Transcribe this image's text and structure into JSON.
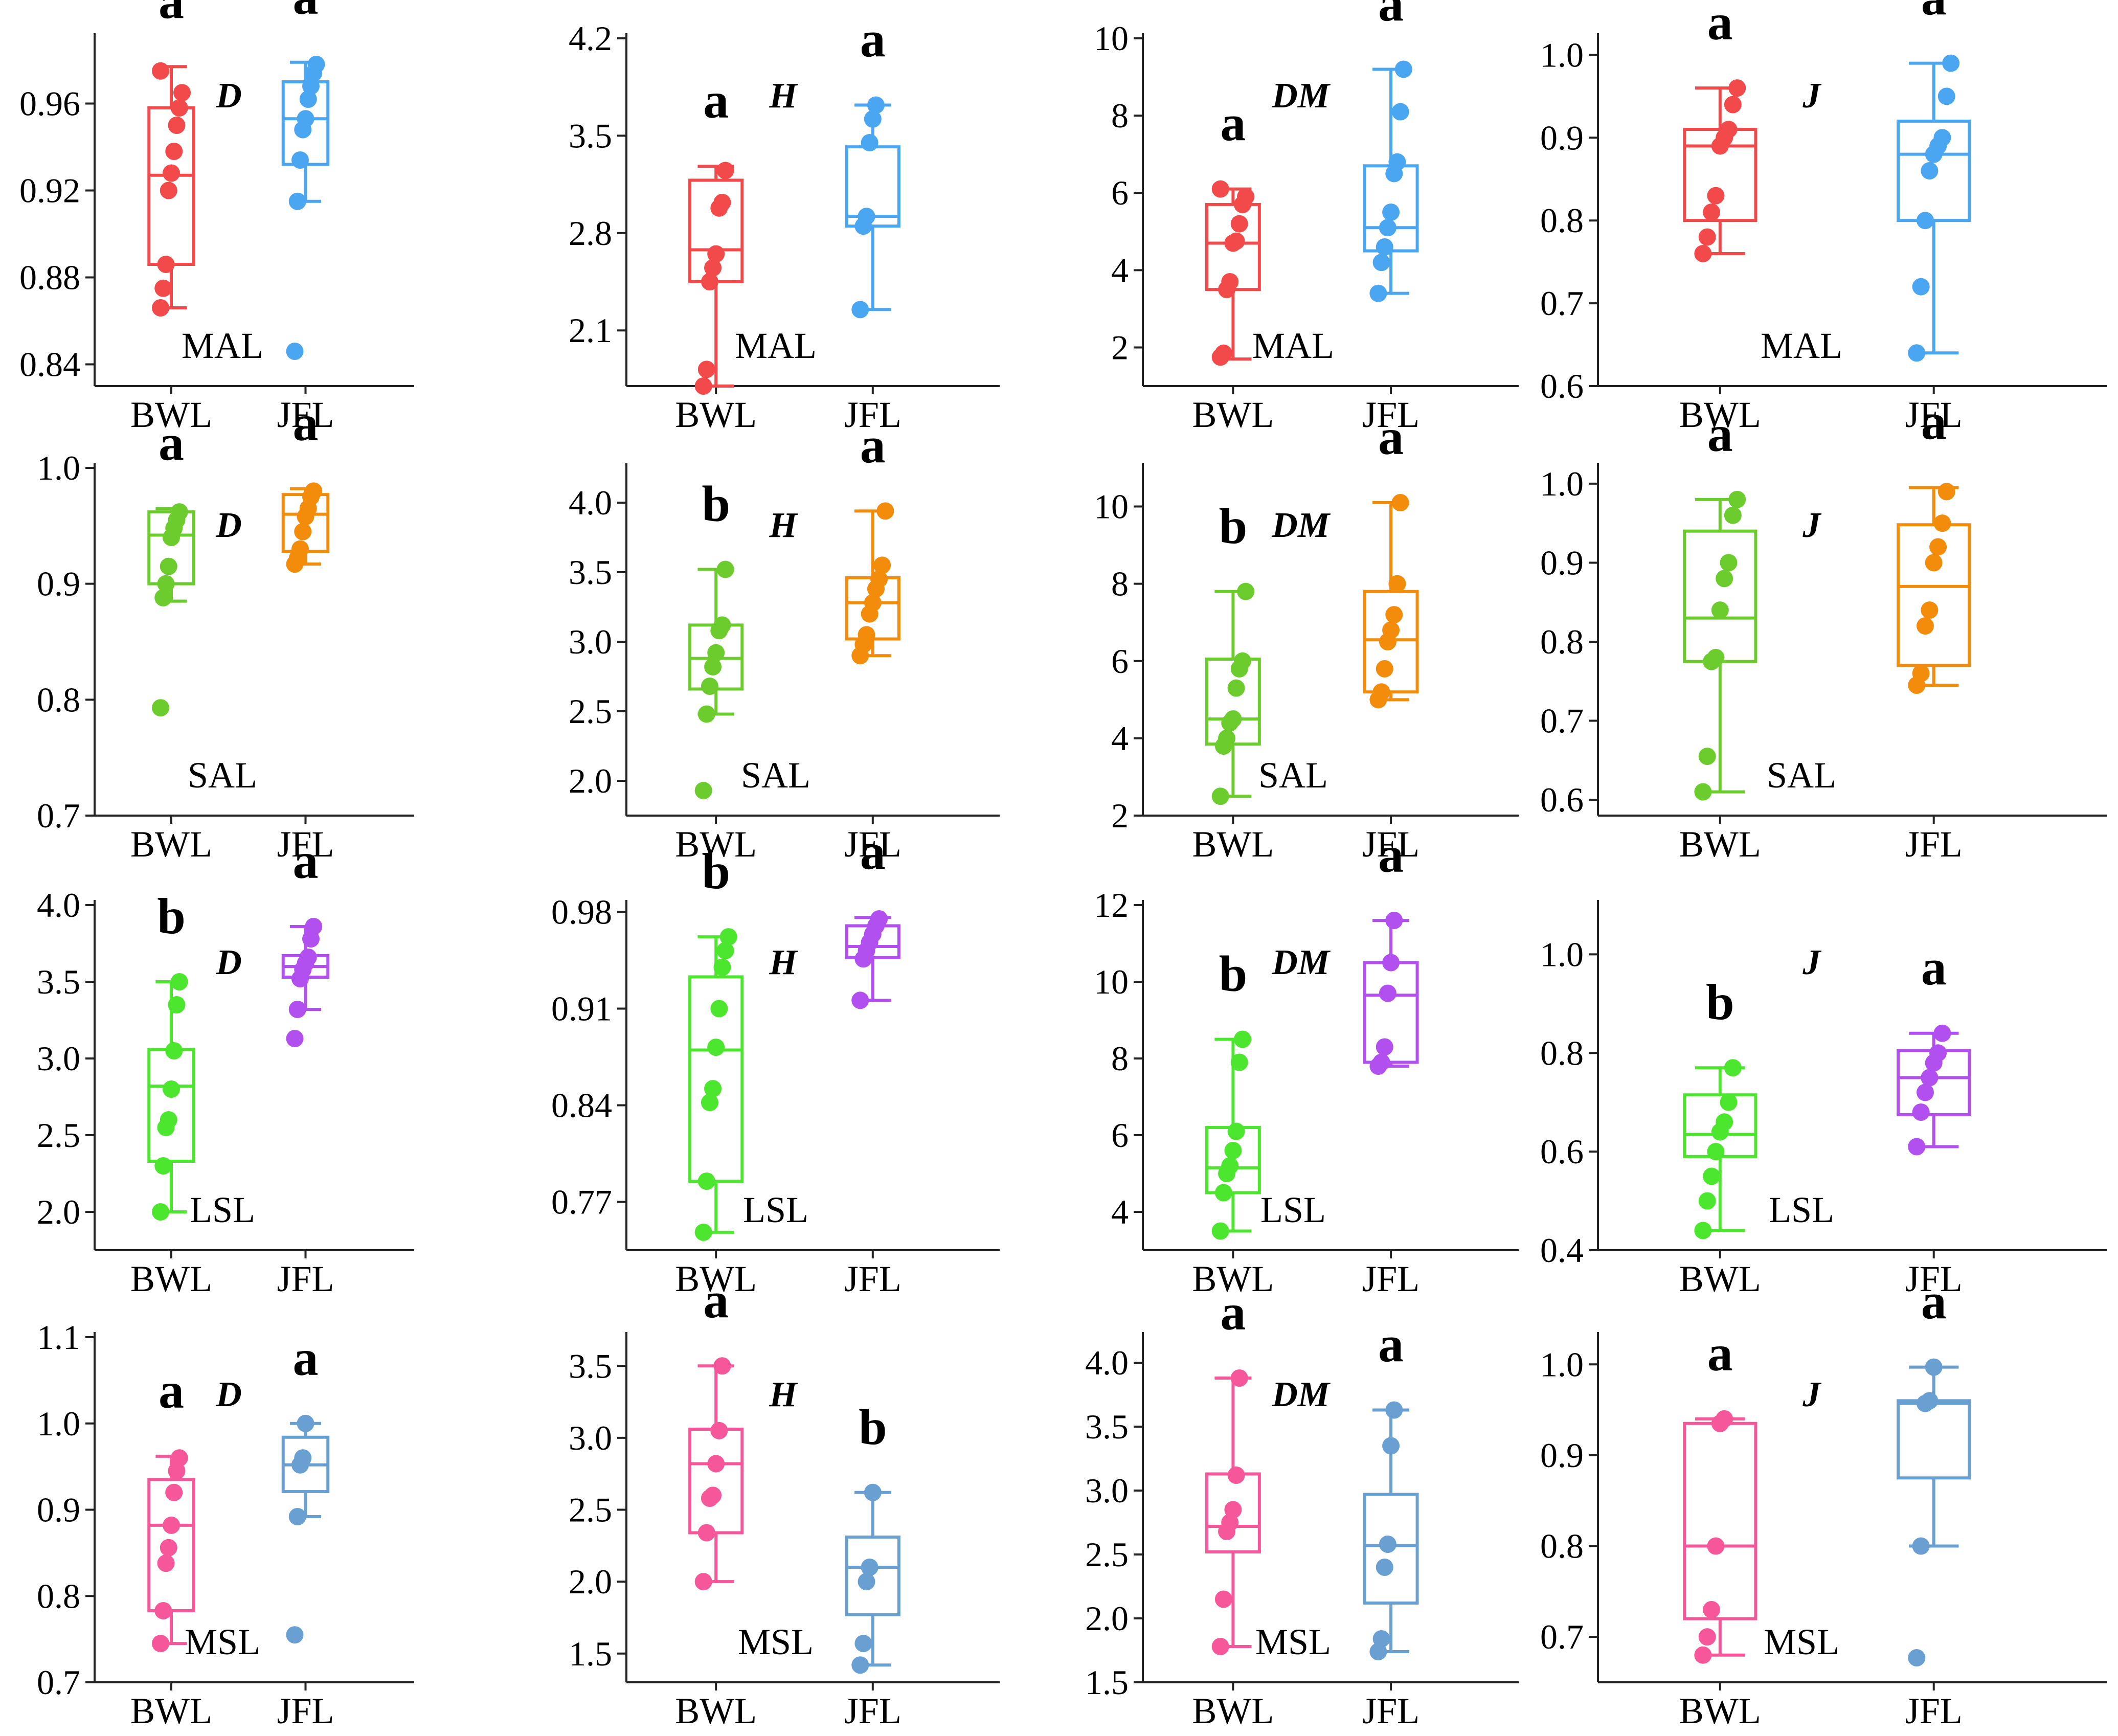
{
  "figure": {
    "columns": 4,
    "rows": 4,
    "group_labels": [
      "BWL",
      "JFL"
    ]
  },
  "chart_data": [
    {
      "type": "box",
      "row": 0,
      "col": 0,
      "site": "MAL",
      "index": "D",
      "categories": [
        "BWL",
        "JFL"
      ],
      "ylim": [
        0.83,
        0.99
      ],
      "yticks": [
        "0.84",
        "0.88",
        "0.92",
        "0.96"
      ],
      "series": [
        {
          "name": "BWL",
          "color": "#f24a4a",
          "min": 0.866,
          "q1": 0.886,
          "median": 0.927,
          "q3": 0.958,
          "max": 0.977,
          "points": [
            0.866,
            0.875,
            0.886,
            0.92,
            0.928,
            0.938,
            0.95,
            0.958,
            0.965,
            0.975
          ],
          "letter": "a"
        },
        {
          "name": "JFL",
          "color": "#4aa6f0",
          "min": 0.915,
          "q1": 0.932,
          "median": 0.953,
          "q3": 0.97,
          "max": 0.979,
          "points": [
            0.846,
            0.915,
            0.934,
            0.948,
            0.953,
            0.962,
            0.968,
            0.974,
            0.978
          ],
          "letter": "a"
        }
      ]
    },
    {
      "type": "box",
      "row": 0,
      "col": 1,
      "site": "MAL",
      "index": "H",
      "categories": [
        "BWL",
        "JFL"
      ],
      "ylim": [
        1.7,
        4.2
      ],
      "yticks": [
        "2.1",
        "2.8",
        "3.5",
        "4.2"
      ],
      "series": [
        {
          "name": "BWL",
          "color": "#f24a4a",
          "min": 1.7,
          "q1": 2.45,
          "median": 2.68,
          "q3": 3.18,
          "max": 3.28,
          "points": [
            1.7,
            1.82,
            2.45,
            2.55,
            2.65,
            2.98,
            3.02,
            3.25
          ],
          "letter": "a"
        },
        {
          "name": "JFL",
          "color": "#4aa6f0",
          "min": 2.25,
          "q1": 2.85,
          "median": 2.92,
          "q3": 3.42,
          "max": 3.72,
          "points": [
            2.25,
            2.85,
            2.92,
            3.45,
            3.62,
            3.72
          ],
          "letter": "a"
        }
      ]
    },
    {
      "type": "box",
      "row": 0,
      "col": 2,
      "site": "MAL",
      "index": "DM",
      "categories": [
        "BWL",
        "JFL"
      ],
      "ylim": [
        1,
        10
      ],
      "yticks": [
        "2",
        "4",
        "6",
        "8",
        "10"
      ],
      "series": [
        {
          "name": "BWL",
          "color": "#f24a4a",
          "min": 1.7,
          "q1": 3.5,
          "median": 4.7,
          "q3": 5.7,
          "max": 6.1,
          "points": [
            1.75,
            1.85,
            3.5,
            3.7,
            4.7,
            4.75,
            5.2,
            5.7,
            5.9,
            6.1
          ],
          "letter": "a"
        },
        {
          "name": "JFL",
          "color": "#4aa6f0",
          "min": 3.4,
          "q1": 4.5,
          "median": 5.1,
          "q3": 6.7,
          "max": 9.2,
          "points": [
            3.4,
            4.2,
            4.6,
            5.1,
            5.5,
            6.5,
            6.8,
            8.1,
            9.2
          ],
          "letter": "a"
        }
      ]
    },
    {
      "type": "box",
      "row": 0,
      "col": 3,
      "site": "MAL",
      "index": "J",
      "categories": [
        "BWL",
        "JFL"
      ],
      "ylim": [
        0.6,
        1.02
      ],
      "yticks": [
        "0.6",
        "0.7",
        "0.8",
        "0.9",
        "1.0"
      ],
      "series": [
        {
          "name": "BWL",
          "color": "#f24a4a",
          "min": 0.76,
          "q1": 0.8,
          "median": 0.89,
          "q3": 0.91,
          "max": 0.96,
          "points": [
            0.76,
            0.78,
            0.81,
            0.83,
            0.89,
            0.9,
            0.91,
            0.94,
            0.96
          ],
          "letter": "a"
        },
        {
          "name": "JFL",
          "color": "#4aa6f0",
          "min": 0.64,
          "q1": 0.8,
          "median": 0.88,
          "q3": 0.92,
          "max": 0.99,
          "points": [
            0.64,
            0.72,
            0.8,
            0.86,
            0.88,
            0.89,
            0.9,
            0.95,
            0.99
          ],
          "letter": "a"
        }
      ]
    },
    {
      "type": "box",
      "row": 1,
      "col": 0,
      "site": "SAL",
      "index": "D",
      "categories": [
        "BWL",
        "JFL"
      ],
      "ylim": [
        0.7,
        1.0
      ],
      "yticks": [
        "0.7",
        "0.8",
        "0.9",
        "1.0"
      ],
      "series": [
        {
          "name": "BWL",
          "color": "#6ccc2e",
          "min": 0.885,
          "q1": 0.9,
          "median": 0.942,
          "q3": 0.962,
          "max": 0.965,
          "points": [
            0.793,
            0.888,
            0.9,
            0.915,
            0.94,
            0.948,
            0.955,
            0.962
          ],
          "letter": "a"
        },
        {
          "name": "JFL",
          "color": "#f28c0a",
          "min": 0.917,
          "q1": 0.928,
          "median": 0.96,
          "q3": 0.977,
          "max": 0.982,
          "points": [
            0.917,
            0.922,
            0.93,
            0.945,
            0.958,
            0.965,
            0.975,
            0.98
          ],
          "letter": "a"
        }
      ]
    },
    {
      "type": "box",
      "row": 1,
      "col": 1,
      "site": "SAL",
      "index": "H",
      "categories": [
        "BWL",
        "JFL"
      ],
      "ylim": [
        1.75,
        4.25
      ],
      "yticks": [
        "2.0",
        "2.5",
        "3.0",
        "3.5",
        "4.0"
      ],
      "series": [
        {
          "name": "BWL",
          "color": "#6ccc2e",
          "min": 2.48,
          "q1": 2.66,
          "median": 2.88,
          "q3": 3.12,
          "max": 3.52,
          "points": [
            1.93,
            2.48,
            2.68,
            2.82,
            2.92,
            3.08,
            3.12,
            3.52
          ],
          "letter": "b"
        },
        {
          "name": "JFL",
          "color": "#f28c0a",
          "min": 2.9,
          "q1": 3.02,
          "median": 3.28,
          "q3": 3.46,
          "max": 3.94,
          "points": [
            2.9,
            2.98,
            3.05,
            3.2,
            3.28,
            3.38,
            3.45,
            3.55,
            3.94
          ],
          "letter": "a"
        }
      ]
    },
    {
      "type": "box",
      "row": 1,
      "col": 2,
      "site": "SAL",
      "index": "DM",
      "categories": [
        "BWL",
        "JFL"
      ],
      "ylim": [
        2,
        11
      ],
      "yticks": [
        "2",
        "4",
        "6",
        "8",
        "10"
      ],
      "series": [
        {
          "name": "BWL",
          "color": "#6ccc2e",
          "min": 2.5,
          "q1": 3.85,
          "median": 4.5,
          "q3": 6.05,
          "max": 7.8,
          "points": [
            2.5,
            3.8,
            4.0,
            4.4,
            4.5,
            5.3,
            5.8,
            6.0,
            7.8
          ],
          "letter": "b"
        },
        {
          "name": "JFL",
          "color": "#f28c0a",
          "min": 5.0,
          "q1": 5.2,
          "median": 6.55,
          "q3": 7.8,
          "max": 10.1,
          "points": [
            5.0,
            5.2,
            5.8,
            6.5,
            6.8,
            7.2,
            8.0,
            10.1
          ],
          "letter": "a"
        }
      ]
    },
    {
      "type": "box",
      "row": 1,
      "col": 3,
      "site": "SAL",
      "index": "J",
      "categories": [
        "BWL",
        "JFL"
      ],
      "ylim": [
        0.58,
        1.02
      ],
      "yticks": [
        "0.6",
        "0.7",
        "0.8",
        "0.9",
        "1.0"
      ],
      "series": [
        {
          "name": "BWL",
          "color": "#6ccc2e",
          "min": 0.61,
          "q1": 0.775,
          "median": 0.83,
          "q3": 0.94,
          "max": 0.98,
          "points": [
            0.61,
            0.655,
            0.775,
            0.78,
            0.84,
            0.88,
            0.9,
            0.96,
            0.98
          ],
          "letter": "a"
        },
        {
          "name": "JFL",
          "color": "#f28c0a",
          "min": 0.745,
          "q1": 0.77,
          "median": 0.87,
          "q3": 0.948,
          "max": 0.995,
          "points": [
            0.745,
            0.76,
            0.82,
            0.84,
            0.9,
            0.92,
            0.95,
            0.99
          ],
          "letter": "a"
        }
      ]
    },
    {
      "type": "box",
      "row": 2,
      "col": 0,
      "site": "LSL",
      "index": "D",
      "categories": [
        "BWL",
        "JFL"
      ],
      "ylim": [
        1.75,
        4.0
      ],
      "yticks": [
        "2.0",
        "2.5",
        "3.0",
        "3.5",
        "4.0"
      ],
      "series": [
        {
          "name": "BWL",
          "color": "#4de62e",
          "min": 2.0,
          "q1": 2.33,
          "median": 2.82,
          "q3": 3.06,
          "max": 3.5,
          "points": [
            2.0,
            2.3,
            2.55,
            2.6,
            2.8,
            3.05,
            3.35,
            3.5
          ],
          "letter": "b"
        },
        {
          "name": "JFL",
          "color": "#b14fef",
          "min": 3.32,
          "q1": 3.53,
          "median": 3.6,
          "q3": 3.67,
          "max": 3.86,
          "points": [
            3.13,
            3.32,
            3.52,
            3.58,
            3.62,
            3.66,
            3.78,
            3.86
          ],
          "letter": "a"
        }
      ]
    },
    {
      "type": "box",
      "row": 2,
      "col": 1,
      "site": "LSL",
      "index": "H",
      "categories": [
        "BWL",
        "JFL"
      ],
      "ylim": [
        0.735,
        0.985
      ],
      "yticks": [
        "0.77",
        "0.84",
        "0.91",
        "0.98"
      ],
      "series": [
        {
          "name": "BWL",
          "color": "#4de62e",
          "min": 0.748,
          "q1": 0.785,
          "median": 0.88,
          "q3": 0.933,
          "max": 0.962,
          "points": [
            0.748,
            0.785,
            0.842,
            0.852,
            0.882,
            0.91,
            0.94,
            0.952,
            0.962
          ],
          "letter": "b"
        },
        {
          "name": "JFL",
          "color": "#b14fef",
          "min": 0.916,
          "q1": 0.947,
          "median": 0.955,
          "q3": 0.97,
          "max": 0.976,
          "points": [
            0.916,
            0.946,
            0.952,
            0.958,
            0.964,
            0.97,
            0.975
          ],
          "letter": "a"
        }
      ]
    },
    {
      "type": "box",
      "row": 2,
      "col": 2,
      "site": "LSL",
      "index": "DM",
      "categories": [
        "BWL",
        "JFL"
      ],
      "ylim": [
        3,
        12
      ],
      "yticks": [
        "4",
        "6",
        "8",
        "10",
        "12"
      ],
      "series": [
        {
          "name": "BWL",
          "color": "#4de62e",
          "min": 3.5,
          "q1": 4.5,
          "median": 5.15,
          "q3": 6.2,
          "max": 8.5,
          "points": [
            3.5,
            4.5,
            5.0,
            5.2,
            5.6,
            6.1,
            7.9,
            8.5
          ],
          "letter": "b"
        },
        {
          "name": "JFL",
          "color": "#b14fef",
          "min": 7.8,
          "q1": 7.9,
          "median": 9.65,
          "q3": 10.5,
          "max": 11.6,
          "points": [
            7.8,
            7.9,
            8.3,
            9.7,
            10.5,
            11.6
          ],
          "letter": "a"
        }
      ]
    },
    {
      "type": "box",
      "row": 2,
      "col": 3,
      "site": "LSL",
      "index": "J",
      "categories": [
        "BWL",
        "JFL"
      ],
      "ylim": [
        0.4,
        1.1
      ],
      "yticks": [
        "0.4",
        "0.6",
        "0.8",
        "1.0"
      ],
      "series": [
        {
          "name": "BWL",
          "color": "#4de62e",
          "min": 0.44,
          "q1": 0.59,
          "median": 0.635,
          "q3": 0.715,
          "max": 0.77,
          "points": [
            0.44,
            0.5,
            0.55,
            0.6,
            0.64,
            0.66,
            0.7,
            0.77
          ],
          "letter": "b"
        },
        {
          "name": "JFL",
          "color": "#b14fef",
          "min": 0.61,
          "q1": 0.675,
          "median": 0.75,
          "q3": 0.805,
          "max": 0.84,
          "points": [
            0.61,
            0.68,
            0.72,
            0.75,
            0.78,
            0.8,
            0.84
          ],
          "letter": "a"
        }
      ]
    },
    {
      "type": "box",
      "row": 3,
      "col": 0,
      "site": "MSL",
      "index": "D",
      "categories": [
        "BWL",
        "JFL"
      ],
      "ylim": [
        0.7,
        1.1
      ],
      "yticks": [
        "0.7",
        "0.8",
        "0.9",
        "1.0",
        "1.1"
      ],
      "series": [
        {
          "name": "BWL",
          "color": "#f5579a",
          "min": 0.745,
          "q1": 0.783,
          "median": 0.882,
          "q3": 0.935,
          "max": 0.962,
          "points": [
            0.745,
            0.783,
            0.838,
            0.856,
            0.882,
            0.92,
            0.945,
            0.96
          ],
          "letter": "a"
        },
        {
          "name": "JFL",
          "color": "#6a9fd2",
          "min": 0.892,
          "q1": 0.921,
          "median": 0.952,
          "q3": 0.984,
          "max": 1.0,
          "points": [
            0.755,
            0.892,
            0.952,
            0.96,
            1.0
          ],
          "letter": "a"
        }
      ]
    },
    {
      "type": "box",
      "row": 3,
      "col": 1,
      "site": "MSL",
      "index": "H",
      "categories": [
        "BWL",
        "JFL"
      ],
      "ylim": [
        1.3,
        3.7
      ],
      "yticks": [
        "1.5",
        "2.0",
        "2.5",
        "3.0",
        "3.5"
      ],
      "series": [
        {
          "name": "BWL",
          "color": "#f5579a",
          "min": 2.0,
          "q1": 2.34,
          "median": 2.82,
          "q3": 3.06,
          "max": 3.5,
          "points": [
            2.0,
            2.34,
            2.58,
            2.6,
            2.82,
            3.05,
            3.5
          ],
          "letter": "a"
        },
        {
          "name": "JFL",
          "color": "#6a9fd2",
          "min": 1.42,
          "q1": 1.77,
          "median": 2.1,
          "q3": 2.31,
          "max": 2.62,
          "points": [
            1.42,
            1.57,
            2.0,
            2.1,
            2.62
          ],
          "letter": "b"
        }
      ]
    },
    {
      "type": "box",
      "row": 3,
      "col": 2,
      "site": "MSL",
      "index": "DM",
      "categories": [
        "BWL",
        "JFL"
      ],
      "ylim": [
        1.5,
        4.2
      ],
      "yticks": [
        "1.5",
        "2.0",
        "2.5",
        "3.0",
        "3.5",
        "4.0"
      ],
      "series": [
        {
          "name": "BWL",
          "color": "#f5579a",
          "min": 1.78,
          "q1": 2.52,
          "median": 2.72,
          "q3": 3.13,
          "max": 3.88,
          "points": [
            1.78,
            2.15,
            2.68,
            2.75,
            2.85,
            3.12,
            3.88
          ],
          "letter": "a"
        },
        {
          "name": "JFL",
          "color": "#6a9fd2",
          "min": 1.74,
          "q1": 2.12,
          "median": 2.57,
          "q3": 2.97,
          "max": 3.63,
          "points": [
            1.74,
            1.84,
            2.4,
            2.58,
            3.35,
            3.63
          ],
          "letter": "a"
        }
      ]
    },
    {
      "type": "box",
      "row": 3,
      "col": 3,
      "site": "MSL",
      "index": "J",
      "categories": [
        "BWL",
        "JFL"
      ],
      "ylim": [
        0.65,
        1.03
      ],
      "yticks": [
        "0.7",
        "0.8",
        "0.9",
        "1.0"
      ],
      "series": [
        {
          "name": "BWL",
          "color": "#f5579a",
          "min": 0.68,
          "q1": 0.72,
          "median": 0.8,
          "q3": 0.935,
          "max": 0.94,
          "points": [
            0.68,
            0.7,
            0.73,
            0.8,
            0.935,
            0.94
          ],
          "letter": "a"
        },
        {
          "name": "JFL",
          "color": "#6a9fd2",
          "min": 0.8,
          "q1": 0.875,
          "median": 0.957,
          "q3": 0.96,
          "max": 0.997,
          "points": [
            0.677,
            0.8,
            0.957,
            0.96,
            0.997
          ],
          "letter": "a"
        }
      ]
    }
  ]
}
